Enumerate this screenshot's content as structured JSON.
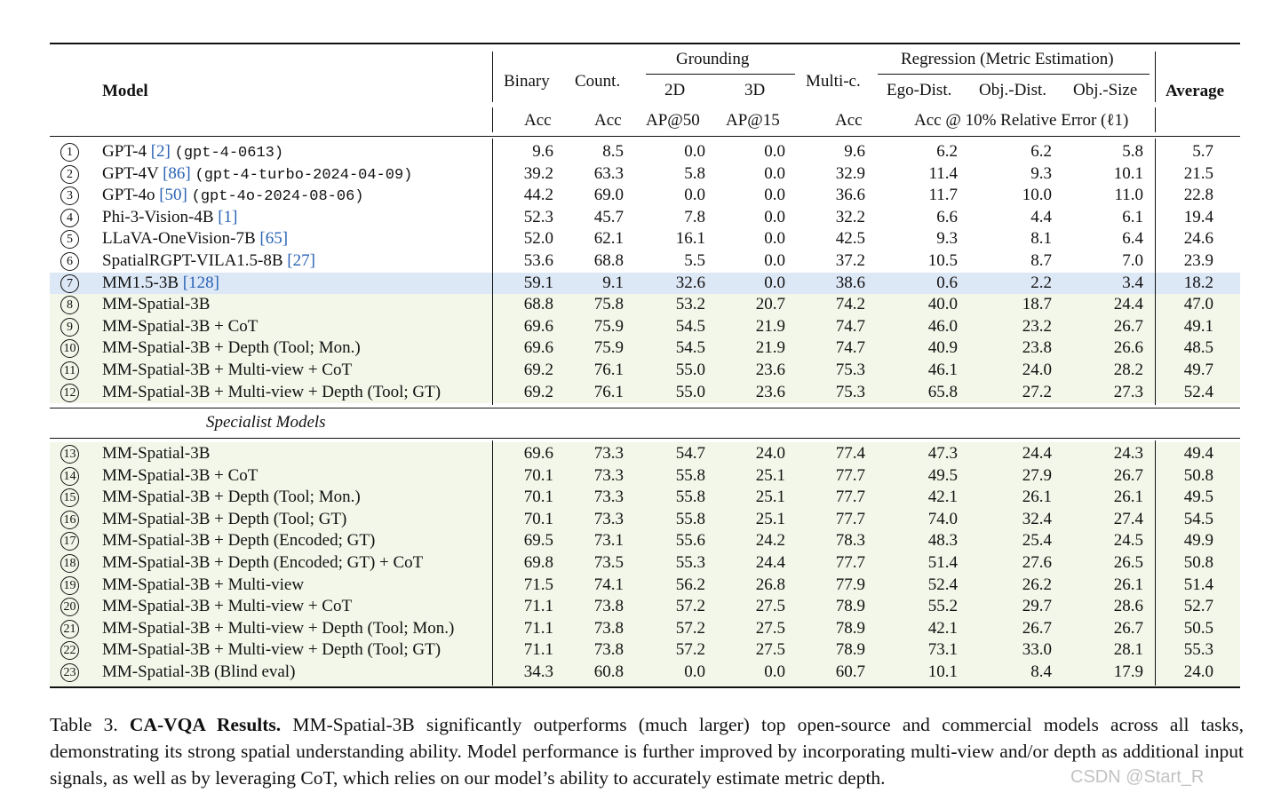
{
  "header": {
    "model": "Model",
    "binary": "Binary",
    "count": "Count.",
    "grounding": "Grounding",
    "grounding_2d": "2D",
    "grounding_3d": "3D",
    "multic": "Multi-c.",
    "regression": "Regression (Metric Estimation)",
    "ego_dist": "Ego-Dist.",
    "obj_dist": "Obj.-Dist.",
    "obj_size": "Obj.-Size",
    "average": "Average",
    "acc1": "Acc",
    "acc2": "Acc",
    "ap50": "AP@50",
    "ap15": "AP@15",
    "acc3": "Acc",
    "acc_rel": "Acc @ 10% Relative Error (ℓ1)"
  },
  "colors": {
    "highlight_blue": "#dde8f6",
    "highlight_green": "#f3f7e9",
    "ref_blue": "#2a62b5"
  },
  "section_label": "Specialist Models",
  "rows_top": [
    {
      "n": "1",
      "model": "GPT-4 ",
      "ref": "[2]",
      "code": "(gpt-4-0613)",
      "vals": [
        "9.6",
        "8.5",
        "0.0",
        "0.0",
        "9.6",
        "6.2",
        "6.2",
        "5.8",
        "5.7"
      ],
      "bg": "none"
    },
    {
      "n": "2",
      "model": "GPT-4V ",
      "ref": "[86]",
      "code": "(gpt-4-turbo-2024-04-09)",
      "vals": [
        "39.2",
        "63.3",
        "5.8",
        "0.0",
        "32.9",
        "11.4",
        "9.3",
        "10.1",
        "21.5"
      ],
      "bg": "none"
    },
    {
      "n": "3",
      "model": "GPT-4o ",
      "ref": "[50]",
      "code": "(gpt-4o-2024-08-06)",
      "vals": [
        "44.2",
        "69.0",
        "0.0",
        "0.0",
        "36.6",
        "11.7",
        "10.0",
        "11.0",
        "22.8"
      ],
      "bg": "none"
    },
    {
      "n": "4",
      "model": "Phi-3-Vision-4B ",
      "ref": "[1]",
      "code": "",
      "vals": [
        "52.3",
        "45.7",
        "7.8",
        "0.0",
        "32.2",
        "6.6",
        "4.4",
        "6.1",
        "19.4"
      ],
      "bg": "none"
    },
    {
      "n": "5",
      "model": "LLaVA-OneVision-7B ",
      "ref": "[65]",
      "code": "",
      "vals": [
        "52.0",
        "62.1",
        "16.1",
        "0.0",
        "42.5",
        "9.3",
        "8.1",
        "6.4",
        "24.6"
      ],
      "bg": "none"
    },
    {
      "n": "6",
      "model": "SpatialRGPT-VILA1.5-8B ",
      "ref": "[27]",
      "code": "",
      "vals": [
        "53.6",
        "68.8",
        "5.5",
        "0.0",
        "37.2",
        "10.5",
        "8.7",
        "7.0",
        "23.9"
      ],
      "bg": "none"
    },
    {
      "n": "7",
      "model": "MM1.5-3B ",
      "ref": "[128]",
      "code": "",
      "vals": [
        "59.1",
        "9.1",
        "32.6",
        "0.0",
        "38.6",
        "0.6",
        "2.2",
        "3.4",
        "18.2"
      ],
      "bg": "blue"
    },
    {
      "n": "8",
      "model": "MM-Spatial-3B",
      "ref": "",
      "code": "",
      "vals": [
        "68.8",
        "75.8",
        "53.2",
        "20.7",
        "74.2",
        "40.0",
        "18.7",
        "24.4",
        "47.0"
      ],
      "bg": "green"
    },
    {
      "n": "9",
      "model": "MM-Spatial-3B + CoT",
      "ref": "",
      "code": "",
      "vals": [
        "69.6",
        "75.9",
        "54.5",
        "21.9",
        "74.7",
        "46.0",
        "23.2",
        "26.7",
        "49.1"
      ],
      "bg": "green"
    },
    {
      "n": "10",
      "model": "MM-Spatial-3B + Depth (Tool; Mon.)",
      "ref": "",
      "code": "",
      "vals": [
        "69.6",
        "75.9",
        "54.5",
        "21.9",
        "74.7",
        "40.9",
        "23.8",
        "26.6",
        "48.5"
      ],
      "bg": "green"
    },
    {
      "n": "11",
      "model": "MM-Spatial-3B + Multi-view + CoT",
      "ref": "",
      "code": "",
      "vals": [
        "69.2",
        "76.1",
        "55.0",
        "23.6",
        "75.3",
        "46.1",
        "24.0",
        "28.2",
        "49.7"
      ],
      "bg": "green"
    },
    {
      "n": "12",
      "model": "MM-Spatial-3B + Multi-view + Depth (Tool; GT)",
      "ref": "",
      "code": "",
      "vals": [
        "69.2",
        "76.1",
        "55.0",
        "23.6",
        "75.3",
        "65.8",
        "27.2",
        "27.3",
        "52.4"
      ],
      "bg": "green"
    }
  ],
  "rows_bottom": [
    {
      "n": "13",
      "model": "MM-Spatial-3B",
      "vals": [
        "69.6",
        "73.3",
        "54.7",
        "24.0",
        "77.4",
        "47.3",
        "24.4",
        "24.3",
        "49.4"
      ]
    },
    {
      "n": "14",
      "model": "MM-Spatial-3B + CoT",
      "vals": [
        "70.1",
        "73.3",
        "55.8",
        "25.1",
        "77.7",
        "49.5",
        "27.9",
        "26.7",
        "50.8"
      ]
    },
    {
      "n": "15",
      "model": "MM-Spatial-3B + Depth (Tool; Mon.)",
      "vals": [
        "70.1",
        "73.3",
        "55.8",
        "25.1",
        "77.7",
        "42.1",
        "26.1",
        "26.1",
        "49.5"
      ]
    },
    {
      "n": "16",
      "model": "MM-Spatial-3B + Depth (Tool; GT)",
      "vals": [
        "70.1",
        "73.3",
        "55.8",
        "25.1",
        "77.7",
        "74.0",
        "32.4",
        "27.4",
        "54.5"
      ]
    },
    {
      "n": "17",
      "model": "MM-Spatial-3B + Depth (Encoded; GT)",
      "vals": [
        "69.5",
        "73.1",
        "55.6",
        "24.2",
        "78.3",
        "48.3",
        "25.4",
        "24.5",
        "49.9"
      ]
    },
    {
      "n": "18",
      "model": "MM-Spatial-3B + Depth (Encoded; GT) + CoT",
      "vals": [
        "69.8",
        "73.5",
        "55.3",
        "24.4",
        "77.7",
        "51.4",
        "27.6",
        "26.5",
        "50.8"
      ]
    },
    {
      "n": "19",
      "model": "MM-Spatial-3B + Multi-view",
      "vals": [
        "71.5",
        "74.1",
        "56.2",
        "26.8",
        "77.9",
        "52.4",
        "26.2",
        "26.1",
        "51.4"
      ]
    },
    {
      "n": "20",
      "model": "MM-Spatial-3B + Multi-view + CoT",
      "vals": [
        "71.1",
        "73.8",
        "57.2",
        "27.5",
        "78.9",
        "55.2",
        "29.7",
        "28.6",
        "52.7"
      ]
    },
    {
      "n": "21",
      "model": "MM-Spatial-3B + Multi-view + Depth (Tool; Mon.)",
      "vals": [
        "71.1",
        "73.8",
        "57.2",
        "27.5",
        "78.9",
        "42.1",
        "26.7",
        "26.7",
        "50.5"
      ]
    },
    {
      "n": "22",
      "model": "MM-Spatial-3B + Multi-view + Depth (Tool; GT)",
      "vals": [
        "71.1",
        "73.8",
        "57.2",
        "27.5",
        "78.9",
        "73.1",
        "33.0",
        "28.1",
        "55.3"
      ]
    },
    {
      "n": "23",
      "model": "MM-Spatial-3B (Blind eval)",
      "vals": [
        "34.3",
        "60.8",
        "0.0",
        "0.0",
        "60.7",
        "10.1",
        "8.4",
        "17.9",
        "24.0"
      ]
    }
  ],
  "caption": {
    "label": "Table 3. ",
    "title": "CA-VQA Results.",
    "text": " MM-Spatial-3B significantly outperforms (much larger) top open-source and commercial models across all tasks, demonstrating its strong spatial understanding ability. Model performance is further improved by incorporating multi-view and/or depth as additional input signals, as well as by leveraging CoT, which relies on our model’s ability to accurately estimate metric depth."
  },
  "watermark": "CSDN @Start_R"
}
